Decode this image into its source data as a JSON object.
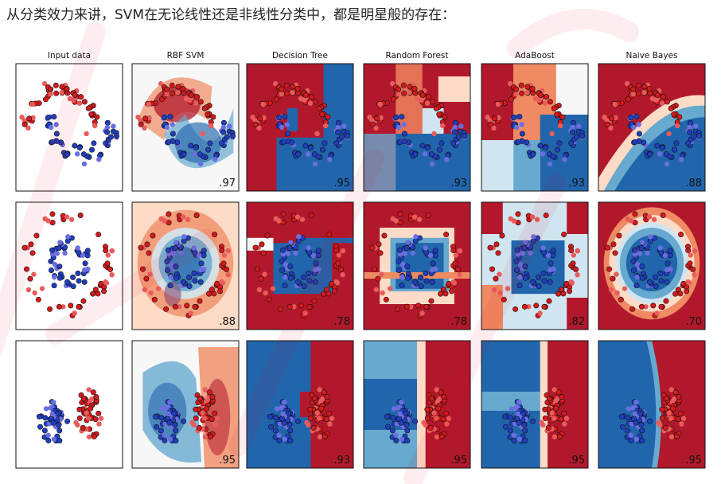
{
  "heading": "从分类效力来讲，SVM在无论线性还是非线性分类中，都是明星般的存在：",
  "colors": {
    "class_red": "#d7191c",
    "class_blue": "#1f3fbf",
    "region_red": "#b2182b",
    "region_blue": "#2166ac",
    "watermark": "#e0001b"
  },
  "chart_data": {
    "type": "scatter",
    "title": "",
    "layout": "grid 3 rows x 6 columns",
    "columns": [
      "Input data",
      "RBF SVM",
      "Decision Tree",
      "Random Forest",
      "AdaBoost",
      "Naive Bayes"
    ],
    "rows": [
      {
        "dataset": "moons",
        "scores": [
          "",
          ".97",
          ".95",
          ".93",
          ".93",
          ".88"
        ]
      },
      {
        "dataset": "circles",
        "scores": [
          "",
          ".88",
          ".78",
          ".78",
          ".82",
          ".70"
        ]
      },
      {
        "dataset": "linearly separable",
        "scores": [
          "",
          ".95",
          ".93",
          ".95",
          ".95",
          ".95"
        ]
      }
    ],
    "point_classes": [
      "red",
      "blue"
    ],
    "grid": false,
    "axes_ticks": false
  }
}
